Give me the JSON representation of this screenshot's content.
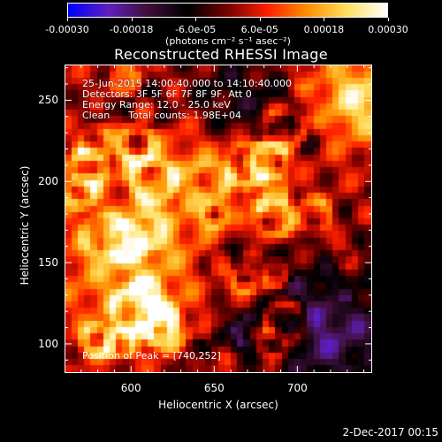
{
  "colorbar": {
    "min": -0.0003,
    "max": 0.0003,
    "ticks": [
      "-0.00030",
      "-0.00018",
      "-6.0e-05",
      "6.0e-05",
      "0.00018",
      "0.00030"
    ],
    "tick_values": [
      -0.0003,
      -0.00018,
      -6e-05,
      6e-05,
      0.00018,
      0.0003
    ],
    "unit_label": "(photons cm⁻² s⁻¹ asec⁻²)"
  },
  "annotations": {
    "time_range": "25-Jun-2015 14:00:40.000 to 14:10:40.000",
    "detectors": "Detectors: 3F 5F 6F 7F 8F 9F, Att 0",
    "energy": "Energy Range: 12.0 - 25.0 keV",
    "algorithm": "Clean      Total counts: 1.98E+04",
    "peak": "Position of Peak = [740,252]"
  },
  "footer": {
    "timestamp": "2-Dec-2017 00:15"
  },
  "chart_data": {
    "type": "heatmap",
    "title": "Reconstructed RHESSI Image",
    "xlabel": "Heliocentric X (arcsec)",
    "ylabel": "Heliocentric Y (arcsec)",
    "xlim": [
      560,
      745
    ],
    "ylim": [
      82,
      272
    ],
    "x_ticks": [
      600,
      650,
      700
    ],
    "y_ticks": [
      100,
      150,
      200,
      250
    ],
    "x_tick_labels": [
      "600",
      "650",
      "700"
    ],
    "y_tick_labels": [
      "100",
      "150",
      "200",
      "250"
    ],
    "colormap": [
      "#0000ff",
      "#6020c0",
      "#40103a",
      "#000000",
      "#7a0000",
      "#ff2000",
      "#ff9000",
      "#ffe060",
      "#ffffff"
    ],
    "peak_position": [
      740,
      252
    ]
  }
}
